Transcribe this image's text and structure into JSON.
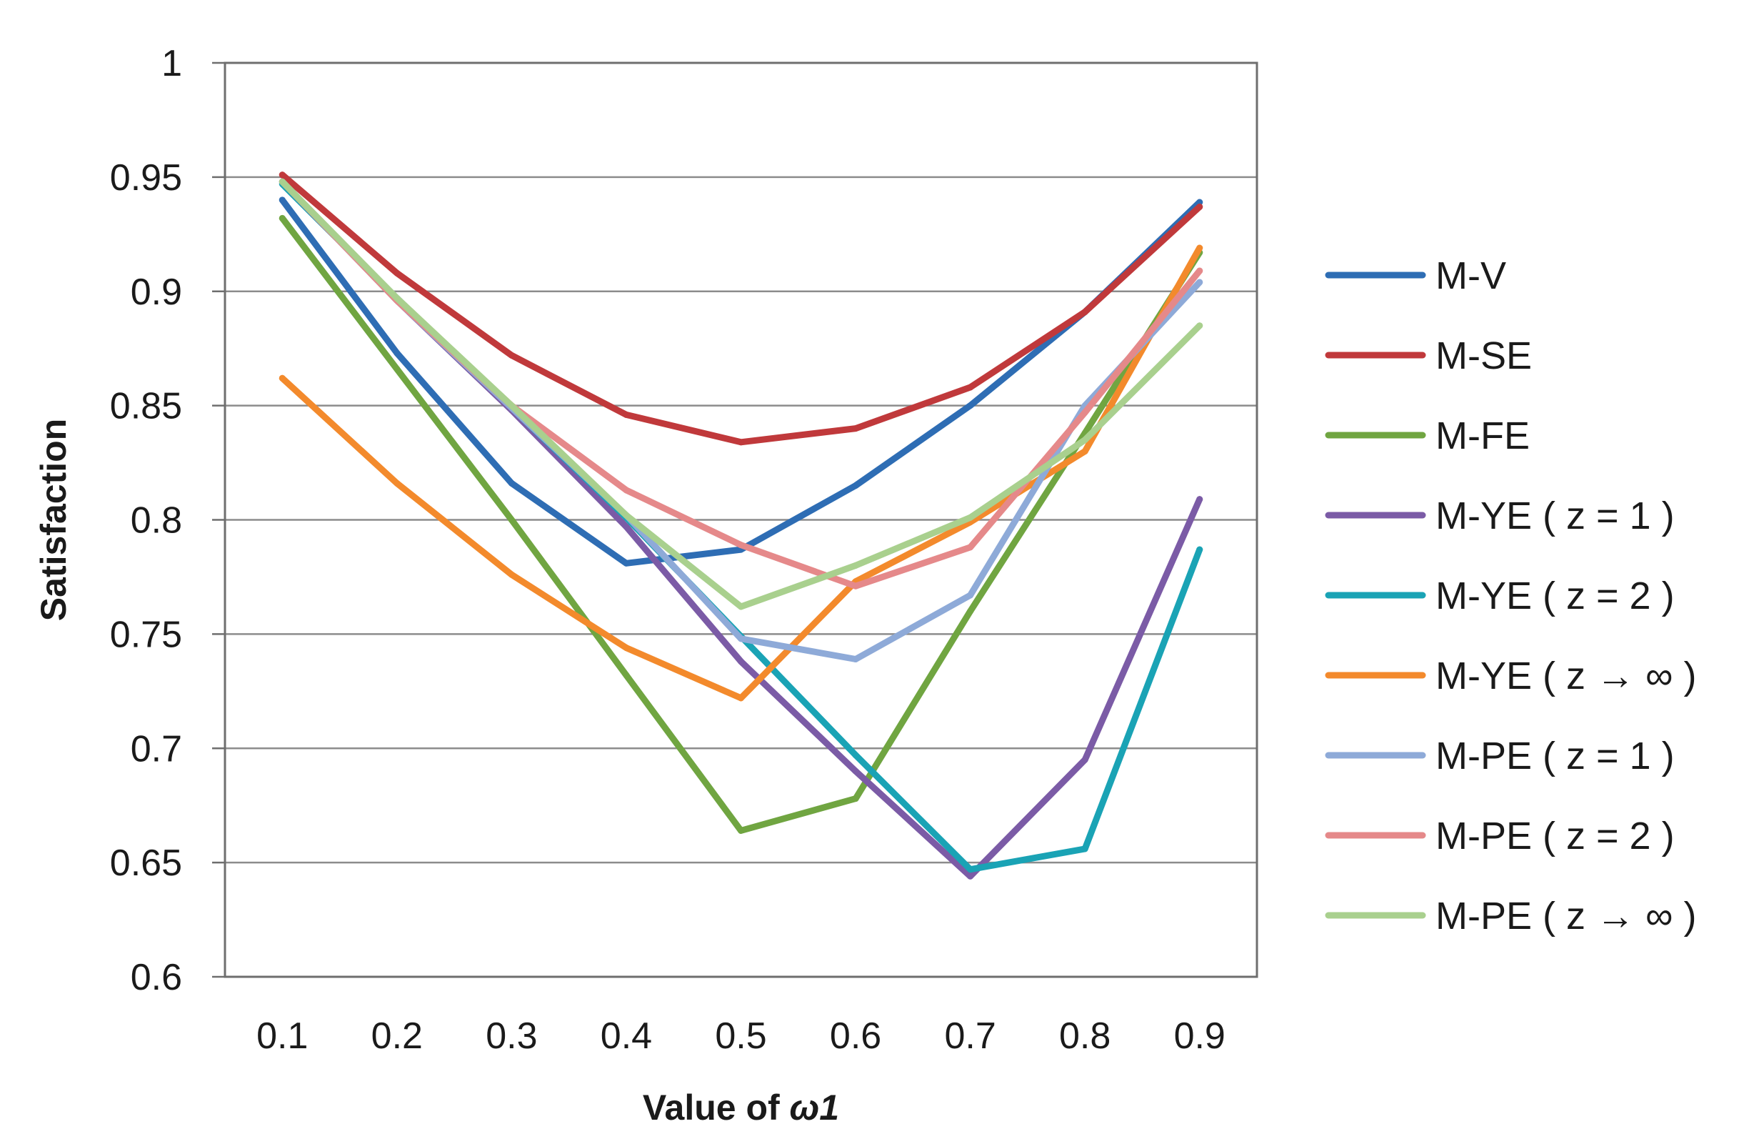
{
  "chart_data": {
    "type": "line",
    "title": "",
    "xlabel": "Value of ",
    "xlabel_symbol": "ω1",
    "ylabel": "Satisfaction",
    "categories": [
      "0.1",
      "0.2",
      "0.3",
      "0.4",
      "0.5",
      "0.6",
      "0.7",
      "0.8",
      "0.9"
    ],
    "y_ticks": [
      "0.6",
      "0.65",
      "0.7",
      "0.75",
      "0.8",
      "0.85",
      "0.9",
      "0.95",
      "1"
    ],
    "ylim": [
      0.6,
      1.0
    ],
    "grid": true,
    "legend_position": "right",
    "series": [
      {
        "name": "M-V",
        "color": "#2e6db4",
        "values": [
          0.94,
          0.873,
          0.816,
          0.781,
          0.787,
          0.815,
          0.85,
          0.891,
          0.939
        ]
      },
      {
        "name": "M-SE",
        "color": "#c0393b",
        "values": [
          0.951,
          0.908,
          0.872,
          0.846,
          0.834,
          0.84,
          0.858,
          0.891,
          0.937
        ]
      },
      {
        "name": "M-FE",
        "color": "#70a541",
        "values": [
          0.932,
          0.866,
          0.8,
          0.732,
          0.664,
          0.678,
          0.76,
          0.838,
          0.917
        ]
      },
      {
        "name": "M-YE ( z = 1 )",
        "color": "#7b5ba6",
        "values": [
          0.948,
          0.896,
          0.848,
          0.797,
          0.738,
          0.69,
          0.644,
          0.695,
          0.809
        ]
      },
      {
        "name": "M-YE ( z = 2 )",
        "color": "#1aa3b5",
        "values": [
          0.947,
          0.897,
          0.849,
          0.801,
          0.749,
          0.697,
          0.647,
          0.656,
          0.787
        ]
      },
      {
        "name": "M-YE ( z → ∞ )",
        "color": "#f38a2c",
        "values": [
          0.862,
          0.816,
          0.776,
          0.744,
          0.722,
          0.773,
          0.799,
          0.83,
          0.919
        ]
      },
      {
        "name": "M-PE ( z = 1 )",
        "color": "#8eaad8",
        "values": [
          0.948,
          0.896,
          0.849,
          0.802,
          0.748,
          0.739,
          0.767,
          0.85,
          0.904
        ]
      },
      {
        "name": "M-PE ( z = 2 )",
        "color": "#e5898a",
        "values": [
          0.948,
          0.896,
          0.85,
          0.813,
          0.789,
          0.771,
          0.788,
          0.847,
          0.909
        ]
      },
      {
        "name": "M-PE ( z → ∞ )",
        "color": "#a9d08e",
        "values": [
          0.948,
          0.897,
          0.85,
          0.802,
          0.762,
          0.78,
          0.801,
          0.835,
          0.885
        ]
      }
    ]
  }
}
